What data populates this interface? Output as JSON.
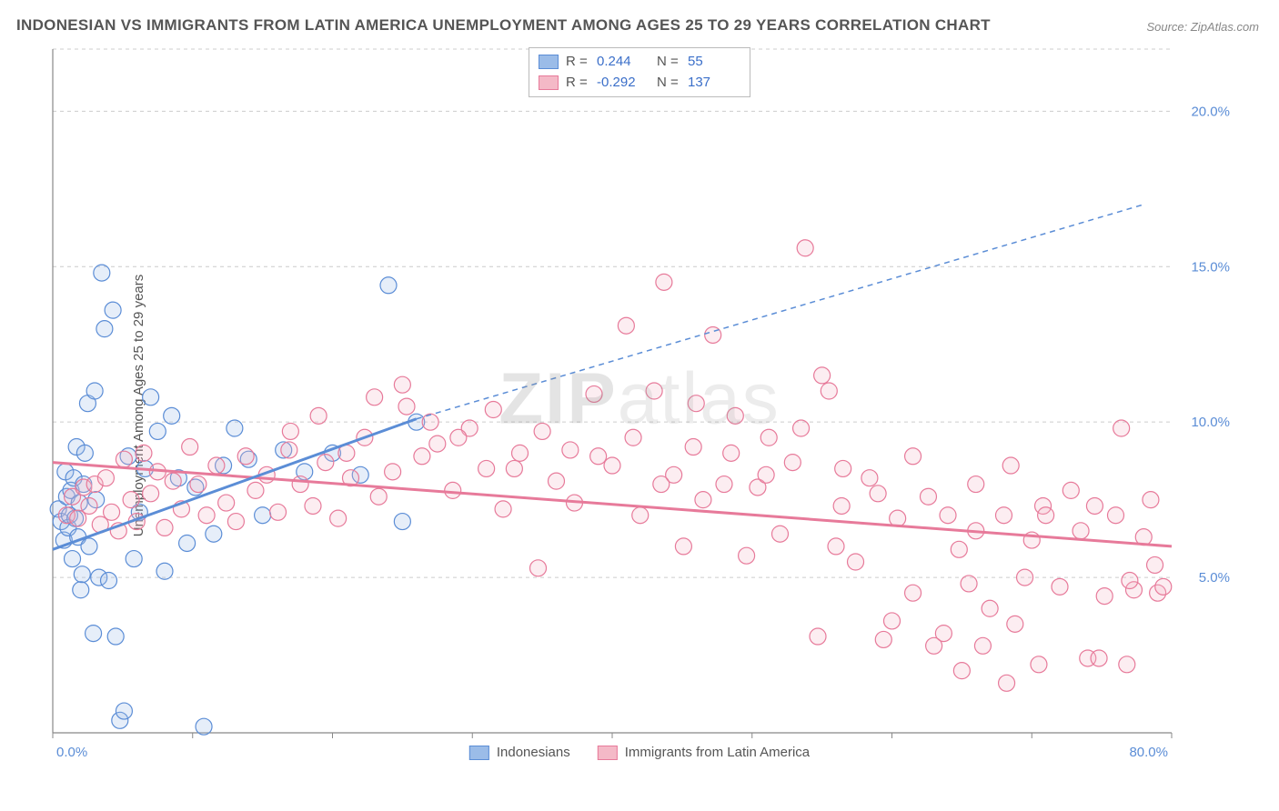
{
  "title": "INDONESIAN VS IMMIGRANTS FROM LATIN AMERICA UNEMPLOYMENT AMONG AGES 25 TO 29 YEARS CORRELATION CHART",
  "source": "Source: ZipAtlas.com",
  "ylabel": "Unemployment Among Ages 25 to 29 years",
  "watermark_a": "ZIP",
  "watermark_b": "atlas",
  "chart": {
    "type": "scatter",
    "background_color": "#ffffff",
    "grid_color": "#cccccc",
    "axis_color": "#888888",
    "tick_label_color": "#5b8dd6",
    "tick_fontsize": 15,
    "xlim": [
      0,
      80
    ],
    "ylim": [
      0,
      22
    ],
    "x_ticks": [
      0,
      80
    ],
    "x_tick_labels": [
      "0.0%",
      "80.0%"
    ],
    "y_ticks": [
      5,
      10,
      15,
      20
    ],
    "y_tick_labels": [
      "5.0%",
      "10.0%",
      "15.0%",
      "20.0%"
    ],
    "marker_radius": 9,
    "series": [
      {
        "name": "Indonesians",
        "color_fill": "#9bbce8",
        "color_stroke": "#5b8dd6",
        "R": "0.244",
        "N": "55",
        "trend": {
          "x1": 0,
          "y1": 5.9,
          "x2": 26,
          "y2": 10.1,
          "x2_ext": 78,
          "y2_ext": 17.0
        },
        "points": [
          [
            0.4,
            7.2
          ],
          [
            0.6,
            6.8
          ],
          [
            0.8,
            6.2
          ],
          [
            0.9,
            8.4
          ],
          [
            1.0,
            7.6
          ],
          [
            1.1,
            6.6
          ],
          [
            1.2,
            7.0
          ],
          [
            1.3,
            7.8
          ],
          [
            1.4,
            5.6
          ],
          [
            1.5,
            8.2
          ],
          [
            1.6,
            6.9
          ],
          [
            1.7,
            9.2
          ],
          [
            1.8,
            6.3
          ],
          [
            1.9,
            7.4
          ],
          [
            2.0,
            4.6
          ],
          [
            2.1,
            5.1
          ],
          [
            2.2,
            8.0
          ],
          [
            2.5,
            10.6
          ],
          [
            2.6,
            6.0
          ],
          [
            2.9,
            3.2
          ],
          [
            3.1,
            7.5
          ],
          [
            3.3,
            5.0
          ],
          [
            3.5,
            14.8
          ],
          [
            3.7,
            13.0
          ],
          [
            4.0,
            4.9
          ],
          [
            4.3,
            13.6
          ],
          [
            4.5,
            3.1
          ],
          [
            4.8,
            0.4
          ],
          [
            5.1,
            0.7
          ],
          [
            5.4,
            8.9
          ],
          [
            5.8,
            5.6
          ],
          [
            6.2,
            7.1
          ],
          [
            6.6,
            8.5
          ],
          [
            7.0,
            10.8
          ],
          [
            7.5,
            9.7
          ],
          [
            8.0,
            5.2
          ],
          [
            8.5,
            10.2
          ],
          [
            9.0,
            8.2
          ],
          [
            9.6,
            6.1
          ],
          [
            10.2,
            7.9
          ],
          [
            10.8,
            0.2
          ],
          [
            11.5,
            6.4
          ],
          [
            12.2,
            8.6
          ],
          [
            13.0,
            9.8
          ],
          [
            14.0,
            8.8
          ],
          [
            15.0,
            7.0
          ],
          [
            16.5,
            9.1
          ],
          [
            18.0,
            8.4
          ],
          [
            20.0,
            9.0
          ],
          [
            22.0,
            8.3
          ],
          [
            24.0,
            14.4
          ],
          [
            25.0,
            6.8
          ],
          [
            26.0,
            10.0
          ],
          [
            3.0,
            11.0
          ],
          [
            2.3,
            9.0
          ]
        ]
      },
      {
        "name": "Immigrants from Latin America",
        "color_fill": "#f4b9c7",
        "color_stroke": "#e77a9a",
        "R": "-0.292",
        "N": "137",
        "trend": {
          "x1": 0,
          "y1": 8.7,
          "x2": 80,
          "y2": 6.0
        },
        "points": [
          [
            1.0,
            7.0
          ],
          [
            1.4,
            7.6
          ],
          [
            1.8,
            6.9
          ],
          [
            2.2,
            7.9
          ],
          [
            2.6,
            7.3
          ],
          [
            3.0,
            8.0
          ],
          [
            3.4,
            6.7
          ],
          [
            3.8,
            8.2
          ],
          [
            4.2,
            7.1
          ],
          [
            4.7,
            6.5
          ],
          [
            5.1,
            8.8
          ],
          [
            5.6,
            7.5
          ],
          [
            6.0,
            6.8
          ],
          [
            6.5,
            9.0
          ],
          [
            7.0,
            7.7
          ],
          [
            7.5,
            8.4
          ],
          [
            8.0,
            6.6
          ],
          [
            8.6,
            8.1
          ],
          [
            9.2,
            7.2
          ],
          [
            9.8,
            9.2
          ],
          [
            10.4,
            8.0
          ],
          [
            11.0,
            7.0
          ],
          [
            11.7,
            8.6
          ],
          [
            12.4,
            7.4
          ],
          [
            13.1,
            6.8
          ],
          [
            13.8,
            8.9
          ],
          [
            14.5,
            7.8
          ],
          [
            15.3,
            8.3
          ],
          [
            16.1,
            7.1
          ],
          [
            16.9,
            9.1
          ],
          [
            17.7,
            8.0
          ],
          [
            18.6,
            7.3
          ],
          [
            19.5,
            8.7
          ],
          [
            20.4,
            6.9
          ],
          [
            21.3,
            8.2
          ],
          [
            22.3,
            9.5
          ],
          [
            23.3,
            7.6
          ],
          [
            24.3,
            8.4
          ],
          [
            25.3,
            10.5
          ],
          [
            26.4,
            8.9
          ],
          [
            27.5,
            9.3
          ],
          [
            28.6,
            7.8
          ],
          [
            29.8,
            9.8
          ],
          [
            31.0,
            8.5
          ],
          [
            32.2,
            7.2
          ],
          [
            33.4,
            9.0
          ],
          [
            34.7,
            5.3
          ],
          [
            36.0,
            8.1
          ],
          [
            37.3,
            7.4
          ],
          [
            38.7,
            10.9
          ],
          [
            40.0,
            8.6
          ],
          [
            41.0,
            13.1
          ],
          [
            42.0,
            7.0
          ],
          [
            43.0,
            11.0
          ],
          [
            43.7,
            14.5
          ],
          [
            44.4,
            8.3
          ],
          [
            45.1,
            6.0
          ],
          [
            45.8,
            9.2
          ],
          [
            46.5,
            7.5
          ],
          [
            47.2,
            12.8
          ],
          [
            48.0,
            8.0
          ],
          [
            48.8,
            10.2
          ],
          [
            49.6,
            5.7
          ],
          [
            50.4,
            7.9
          ],
          [
            51.2,
            9.5
          ],
          [
            52.0,
            6.4
          ],
          [
            52.9,
            8.7
          ],
          [
            53.8,
            15.6
          ],
          [
            54.7,
            3.1
          ],
          [
            55.0,
            11.5
          ],
          [
            55.5,
            11.0
          ],
          [
            56.0,
            6.0
          ],
          [
            56.4,
            7.3
          ],
          [
            57.4,
            5.5
          ],
          [
            58.4,
            8.2
          ],
          [
            59.4,
            3.0
          ],
          [
            60.4,
            6.9
          ],
          [
            61.5,
            4.5
          ],
          [
            62.6,
            7.6
          ],
          [
            63.7,
            3.2
          ],
          [
            64.8,
            5.9
          ],
          [
            65.0,
            2.0
          ],
          [
            66.0,
            8.0
          ],
          [
            66.5,
            2.8
          ],
          [
            67.0,
            4.0
          ],
          [
            68.0,
            7.0
          ],
          [
            68.2,
            1.6
          ],
          [
            68.8,
            3.5
          ],
          [
            70.0,
            6.2
          ],
          [
            70.8,
            7.3
          ],
          [
            72.0,
            4.7
          ],
          [
            72.8,
            7.8
          ],
          [
            74.0,
            2.4
          ],
          [
            74.5,
            7.3
          ],
          [
            75.2,
            4.4
          ],
          [
            76.4,
            9.8
          ],
          [
            76.8,
            2.2
          ],
          [
            77.3,
            4.6
          ],
          [
            78.0,
            6.3
          ],
          [
            78.8,
            5.4
          ],
          [
            79.0,
            4.5
          ],
          [
            79.4,
            4.7
          ],
          [
            17.0,
            9.7
          ],
          [
            19.0,
            10.2
          ],
          [
            21.0,
            9.0
          ],
          [
            23.0,
            10.8
          ],
          [
            25.0,
            11.2
          ],
          [
            27.0,
            10.0
          ],
          [
            29.0,
            9.5
          ],
          [
            31.5,
            10.4
          ],
          [
            33.0,
            8.5
          ],
          [
            35.0,
            9.7
          ],
          [
            37.0,
            9.1
          ],
          [
            39.0,
            8.9
          ],
          [
            41.5,
            9.5
          ],
          [
            43.5,
            8.0
          ],
          [
            46.0,
            10.6
          ],
          [
            48.5,
            9.0
          ],
          [
            51.0,
            8.3
          ],
          [
            53.5,
            9.8
          ],
          [
            56.5,
            8.5
          ],
          [
            59.0,
            7.7
          ],
          [
            61.5,
            8.9
          ],
          [
            64.0,
            7.0
          ],
          [
            66.0,
            6.5
          ],
          [
            68.5,
            8.6
          ],
          [
            71.0,
            7.0
          ],
          [
            73.5,
            6.5
          ],
          [
            76.0,
            7.0
          ],
          [
            78.5,
            7.5
          ],
          [
            60.0,
            3.6
          ],
          [
            63.0,
            2.8
          ],
          [
            74.8,
            2.4
          ],
          [
            70.5,
            2.2
          ],
          [
            65.5,
            4.8
          ],
          [
            69.5,
            5.0
          ],
          [
            77.0,
            4.9
          ]
        ]
      }
    ],
    "legend_bottom": [
      {
        "label": "Indonesians",
        "series": 0
      },
      {
        "label": "Immigrants from Latin America",
        "series": 1
      }
    ]
  }
}
